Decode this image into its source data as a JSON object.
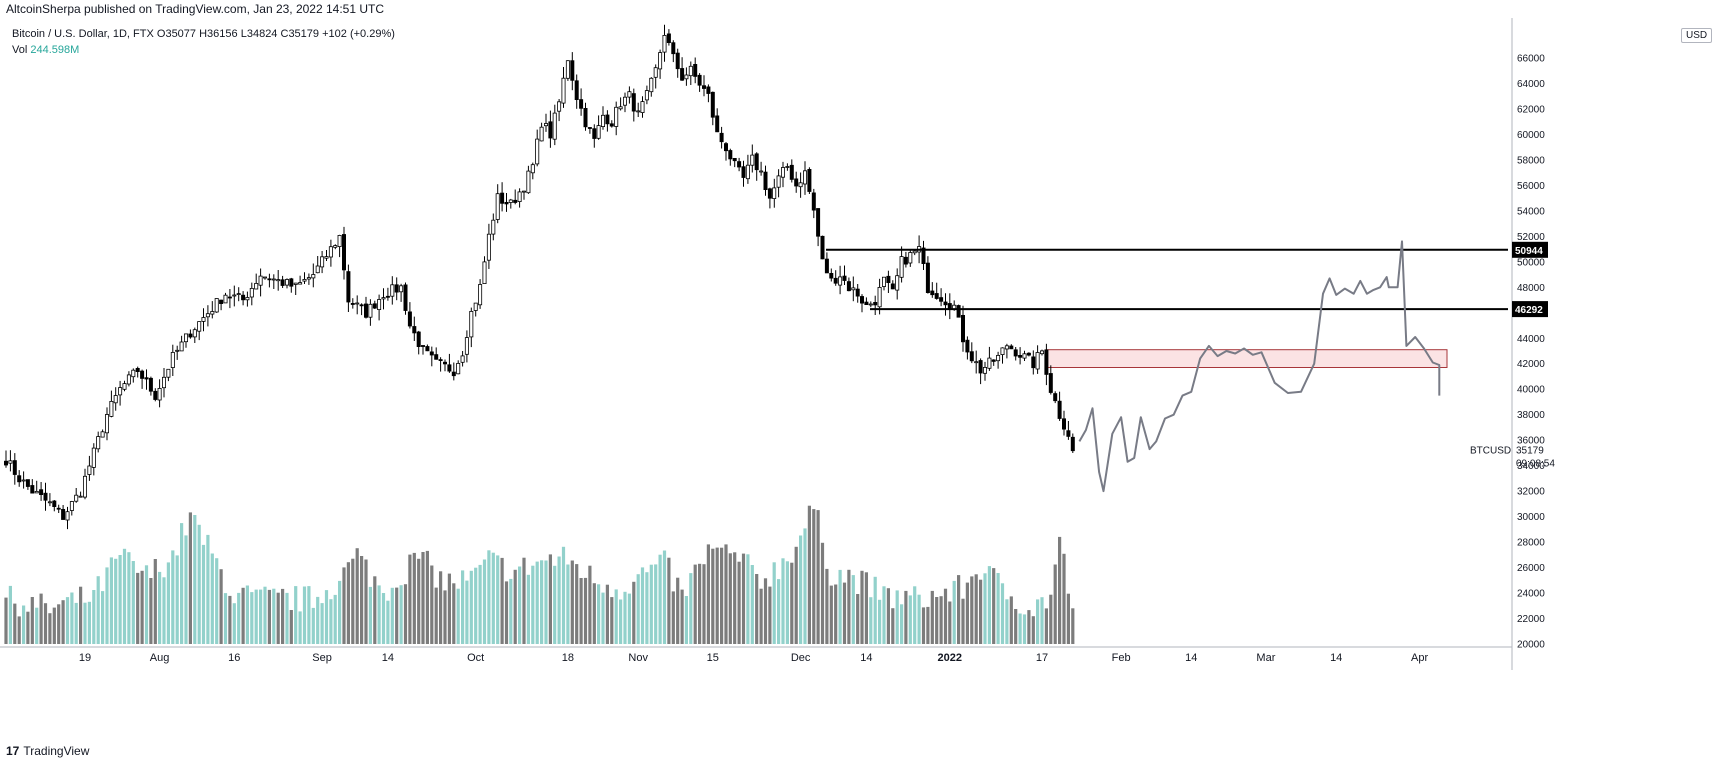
{
  "header": {
    "publish_line": "AltcoinSherpa published on TradingView.com, Jan 23, 2022 14:51 UTC",
    "symbol_line": "Bitcoin / U.S. Dollar, 1D, FTX",
    "ohlc": {
      "o": "O35077",
      "h": "H36156",
      "l": "L34824",
      "c": "C35179",
      "chg": "+102 (+0.29%)"
    },
    "volume_label": "Vol",
    "volume_value": "244.598M",
    "currency": "USD"
  },
  "footer": {
    "logo_mark": "17",
    "logo_text": "TradingView"
  },
  "colors": {
    "up": "#ffffff",
    "down": "#000000",
    "vol_up": "#92d1cb",
    "vol_down": "#7c7c7c",
    "zone_fill": "#fbe3e4",
    "zone_stroke": "#a7363a",
    "level_line": "#000000",
    "drawing": "#787b86"
  },
  "chart_data": {
    "type": "candlestick",
    "symbol": "BTCUSD",
    "timeframe": "1D",
    "ylim": [
      20000,
      67000
    ],
    "y_ticks": [
      20000,
      22000,
      24000,
      26000,
      28000,
      30000,
      32000,
      34000,
      36000,
      38000,
      40000,
      42000,
      44000,
      46000,
      48000,
      50000,
      52000,
      54000,
      56000,
      58000,
      60000,
      62000,
      64000,
      66000
    ],
    "x_ticks": [
      {
        "label": "19",
        "bold": false
      },
      {
        "label": "Aug",
        "bold": false
      },
      {
        "label": "16",
        "bold": false
      },
      {
        "label": "Sep",
        "bold": false
      },
      {
        "label": "14",
        "bold": false
      },
      {
        "label": "Oct",
        "bold": false
      },
      {
        "label": "18",
        "bold": false
      },
      {
        "label": "Nov",
        "bold": false
      },
      {
        "label": "15",
        "bold": false
      },
      {
        "label": "Dec",
        "bold": false
      },
      {
        "label": "14",
        "bold": false
      },
      {
        "label": "2022",
        "bold": true
      },
      {
        "label": "17",
        "bold": false
      },
      {
        "label": "Feb",
        "bold": false
      },
      {
        "label": "14",
        "bold": false
      },
      {
        "label": "Mar",
        "bold": false
      },
      {
        "label": "14",
        "bold": false
      },
      {
        "label": "Apr",
        "bold": false
      }
    ],
    "price_path": [
      [
        0,
        34500
      ],
      [
        3,
        33000
      ],
      [
        6,
        32000
      ],
      [
        10,
        31000
      ],
      [
        13,
        30000
      ],
      [
        17,
        32000
      ],
      [
        20,
        35000
      ],
      [
        23,
        38000
      ],
      [
        26,
        40000
      ],
      [
        30,
        41500
      ],
      [
        34,
        39500
      ],
      [
        38,
        42500
      ],
      [
        42,
        44500
      ],
      [
        46,
        46000
      ],
      [
        50,
        47500
      ],
      [
        54,
        47000
      ],
      [
        58,
        49000
      ],
      [
        62,
        48500
      ],
      [
        66,
        48000
      ],
      [
        70,
        49000
      ],
      [
        74,
        51000
      ],
      [
        76,
        52000
      ],
      [
        78,
        47000
      ],
      [
        82,
        46000
      ],
      [
        86,
        47500
      ],
      [
        90,
        48000
      ],
      [
        92,
        45000
      ],
      [
        95,
        43000
      ],
      [
        98,
        42000
      ],
      [
        102,
        41500
      ],
      [
        104,
        43000
      ],
      [
        106,
        46000
      ],
      [
        108,
        48000
      ],
      [
        110,
        52000
      ],
      [
        112,
        55000
      ],
      [
        115,
        54500
      ],
      [
        118,
        56000
      ],
      [
        120,
        57500
      ],
      [
        122,
        61000
      ],
      [
        124,
        60000
      ],
      [
        126,
        62500
      ],
      [
        128,
        66000
      ],
      [
        130,
        63000
      ],
      [
        132,
        61000
      ],
      [
        134,
        59500
      ],
      [
        136,
        61500
      ],
      [
        138,
        61000
      ],
      [
        140,
        62500
      ],
      [
        142,
        63000
      ],
      [
        144,
        61500
      ],
      [
        146,
        63000
      ],
      [
        148,
        65000
      ],
      [
        150,
        68000
      ],
      [
        152,
        66000
      ],
      [
        154,
        64500
      ],
      [
        156,
        65000
      ],
      [
        158,
        64000
      ],
      [
        160,
        63000
      ],
      [
        162,
        60000
      ],
      [
        164,
        59000
      ],
      [
        166,
        57500
      ],
      [
        168,
        56500
      ],
      [
        170,
        58000
      ],
      [
        172,
        57000
      ],
      [
        174,
        55000
      ],
      [
        176,
        56500
      ],
      [
        178,
        57500
      ],
      [
        180,
        56000
      ],
      [
        182,
        57000
      ],
      [
        184,
        54000
      ],
      [
        186,
        50000
      ],
      [
        188,
        48500
      ],
      [
        190,
        49000
      ],
      [
        192,
        48000
      ],
      [
        194,
        47500
      ],
      [
        196,
        46500
      ],
      [
        198,
        47000
      ],
      [
        200,
        48500
      ],
      [
        202,
        47500
      ],
      [
        204,
        50000
      ],
      [
        206,
        50500
      ],
      [
        208,
        51000
      ],
      [
        210,
        48000
      ],
      [
        212,
        47500
      ],
      [
        214,
        47000
      ],
      [
        216,
        46500
      ],
      [
        218,
        44000
      ],
      [
        220,
        42500
      ],
      [
        222,
        41500
      ],
      [
        224,
        42000
      ],
      [
        226,
        42500
      ],
      [
        228,
        43500
      ],
      [
        230,
        43000
      ],
      [
        232,
        42500
      ],
      [
        234,
        42000
      ],
      [
        236,
        43000
      ],
      [
        238,
        40000
      ],
      [
        240,
        38000
      ],
      [
        242,
        36500
      ],
      [
        243,
        35200
      ]
    ],
    "volume_path": [
      [
        0,
        0.28
      ],
      [
        10,
        0.22
      ],
      [
        20,
        0.3
      ],
      [
        26,
        0.55
      ],
      [
        32,
        0.42
      ],
      [
        38,
        0.55
      ],
      [
        42,
        0.8
      ],
      [
        46,
        0.6
      ],
      [
        52,
        0.3
      ],
      [
        60,
        0.28
      ],
      [
        70,
        0.28
      ],
      [
        76,
        0.4
      ],
      [
        80,
        0.55
      ],
      [
        86,
        0.32
      ],
      [
        94,
        0.55
      ],
      [
        100,
        0.38
      ],
      [
        106,
        0.4
      ],
      [
        110,
        0.52
      ],
      [
        116,
        0.45
      ],
      [
        122,
        0.52
      ],
      [
        128,
        0.53
      ],
      [
        134,
        0.4
      ],
      [
        140,
        0.35
      ],
      [
        146,
        0.45
      ],
      [
        150,
        0.5
      ],
      [
        154,
        0.3
      ],
      [
        160,
        0.58
      ],
      [
        166,
        0.55
      ],
      [
        172,
        0.4
      ],
      [
        176,
        0.48
      ],
      [
        180,
        0.62
      ],
      [
        184,
        0.85
      ],
      [
        188,
        0.45
      ],
      [
        194,
        0.4
      ],
      [
        200,
        0.3
      ],
      [
        206,
        0.28
      ],
      [
        212,
        0.3
      ],
      [
        218,
        0.35
      ],
      [
        222,
        0.48
      ],
      [
        228,
        0.32
      ],
      [
        234,
        0.22
      ],
      [
        238,
        0.3
      ],
      [
        240,
        0.66
      ],
      [
        243,
        0.18
      ]
    ],
    "horizontal_levels": [
      50944,
      46292
    ],
    "resistance_zone": [
      41700,
      43100
    ],
    "sketch_path": [
      [
        244.5,
        35900
      ],
      [
        246,
        36800
      ],
      [
        247.5,
        38500
      ],
      [
        249,
        33500
      ],
      [
        250,
        32000
      ],
      [
        252,
        36500
      ],
      [
        254,
        37800
      ],
      [
        255.5,
        34300
      ],
      [
        257,
        34600
      ],
      [
        258.5,
        37800
      ],
      [
        260.5,
        35300
      ],
      [
        262,
        35900
      ],
      [
        264,
        37700
      ],
      [
        266,
        38000
      ],
      [
        268,
        39500
      ],
      [
        270,
        39800
      ],
      [
        272,
        42400
      ],
      [
        274,
        43400
      ],
      [
        276,
        42600
      ],
      [
        278,
        43000
      ],
      [
        280,
        42800
      ],
      [
        282,
        43200
      ],
      [
        284,
        42700
      ],
      [
        286,
        42900
      ],
      [
        289,
        40500
      ],
      [
        292,
        39700
      ],
      [
        295,
        39800
      ],
      [
        298,
        42000
      ],
      [
        300,
        47500
      ],
      [
        301.5,
        48700
      ],
      [
        303,
        47400
      ],
      [
        305,
        47900
      ],
      [
        307,
        47500
      ],
      [
        308.5,
        48500
      ],
      [
        310,
        47500
      ],
      [
        311.5,
        47800
      ],
      [
        313,
        48000
      ],
      [
        314.5,
        48800
      ],
      [
        315,
        48000
      ],
      [
        317,
        48000
      ],
      [
        318,
        51600
      ],
      [
        319,
        43400
      ],
      [
        321,
        44100
      ],
      [
        323,
        43200
      ],
      [
        325,
        42100
      ],
      [
        326.5,
        41900
      ],
      [
        326.5,
        39500
      ]
    ],
    "last_price": "35179",
    "countdown": "09:08:54",
    "ticker_label": "BTCUSD",
    "level_labels": [
      "50944",
      "46292"
    ]
  }
}
